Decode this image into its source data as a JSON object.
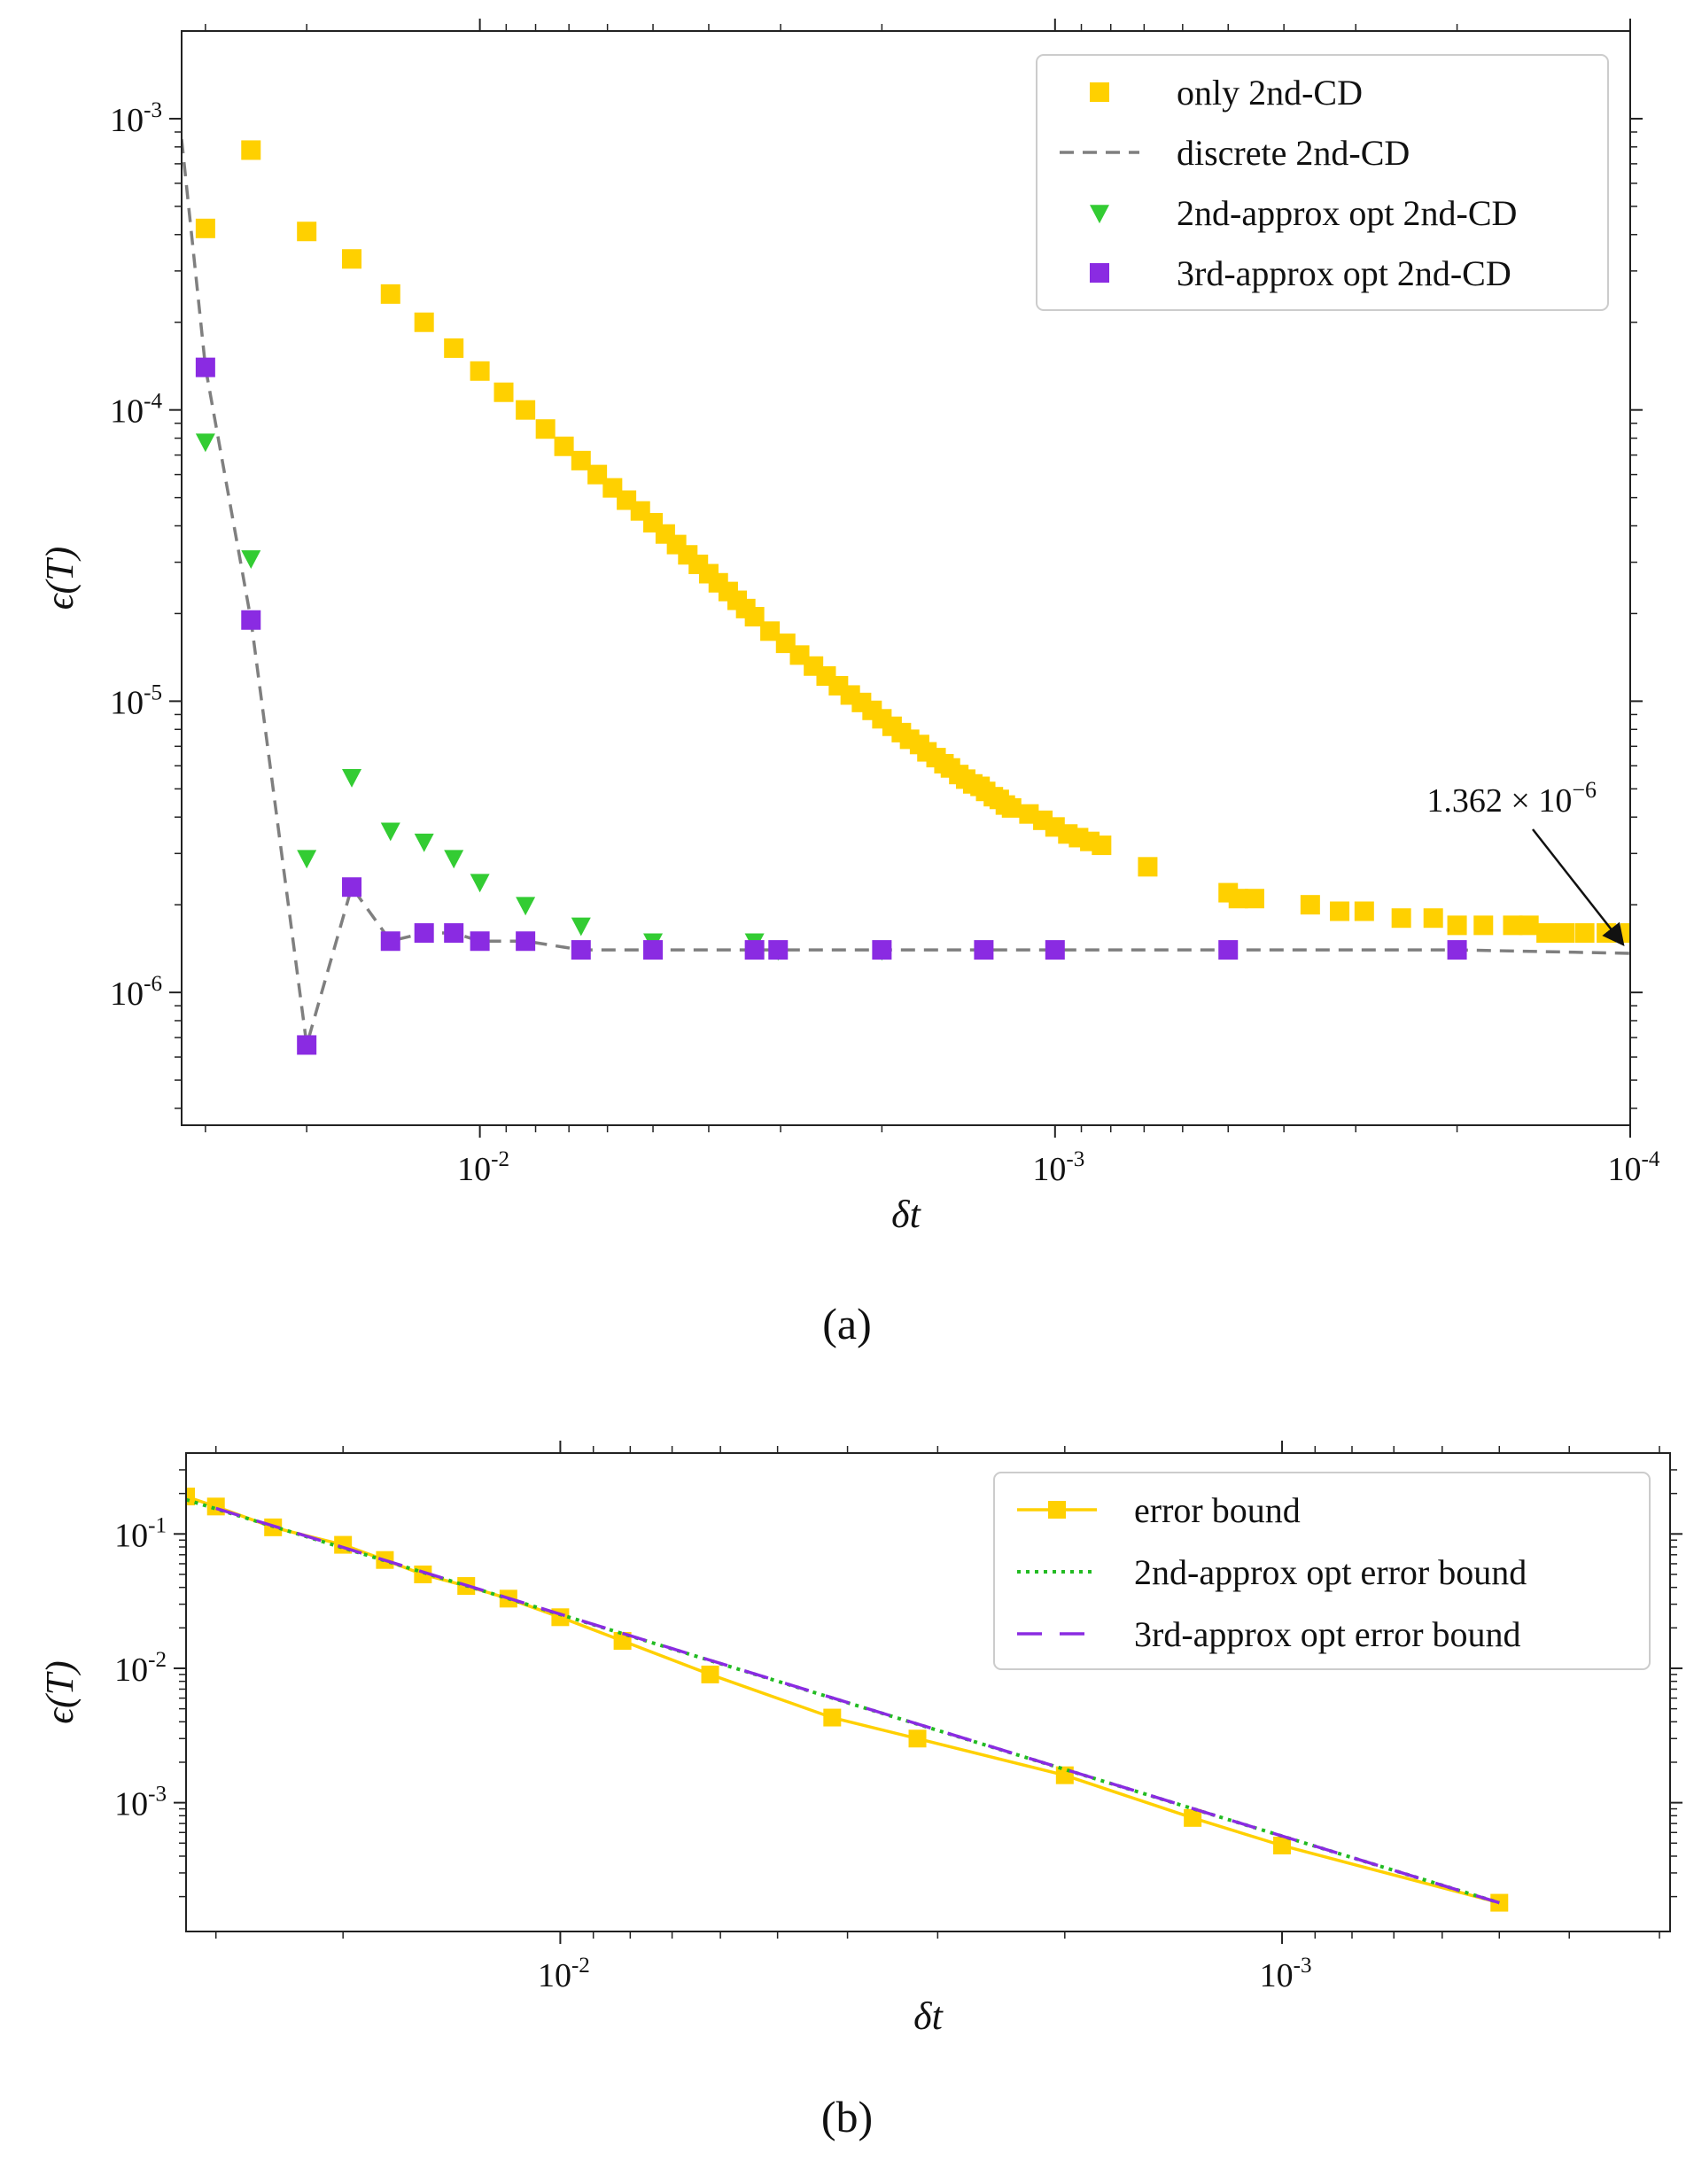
{
  "chart_data": [
    {
      "panel": "(a)",
      "type": "scatter",
      "xscale": "log",
      "yscale": "log",
      "x_reversed": true,
      "xlim": [
        0.033,
        0.0001
      ],
      "ylim": [
        3.5e-07,
        0.002
      ],
      "xlabel": "δt",
      "ylabel": "ϵ(T)",
      "xticks": [
        {
          "value": 0.01,
          "base": "10",
          "exp": "-2"
        },
        {
          "value": 0.001,
          "base": "10",
          "exp": "-3"
        },
        {
          "value": 0.0001,
          "base": "10",
          "exp": "-4"
        }
      ],
      "yticks": [
        {
          "value": 1e-06,
          "base": "10",
          "exp": "-6"
        },
        {
          "value": 1e-05,
          "base": "10",
          "exp": "-5"
        },
        {
          "value": 0.0001,
          "base": "10",
          "exp": "-4"
        },
        {
          "value": 0.001,
          "base": "10",
          "exp": "-3"
        }
      ],
      "legend_position": "top-right",
      "series": [
        {
          "name": "only 2nd-CD",
          "marker": "square",
          "color": "#FFD000",
          "line": "none",
          "points": [
            [
              0.03,
              0.00042
            ],
            [
              0.025,
              0.00078
            ],
            [
              0.02,
              0.00041
            ],
            [
              0.0167,
              0.00033
            ],
            [
              0.0143,
              0.00025
            ],
            [
              0.0125,
              0.0002
            ],
            [
              0.0111,
              0.000163
            ],
            [
              0.01,
              0.000136
            ],
            [
              0.00909,
              0.000115
            ],
            [
              0.00833,
              0.0001
            ],
            [
              0.00769,
              8.6e-05
            ],
            [
              0.00714,
              7.5e-05
            ],
            [
              0.00667,
              6.7e-05
            ],
            [
              0.00625,
              6e-05
            ],
            [
              0.00588,
              5.4e-05
            ],
            [
              0.00556,
              4.9e-05
            ],
            [
              0.00526,
              4.5e-05
            ],
            [
              0.005,
              4.1e-05
            ],
            [
              0.00476,
              3.75e-05
            ],
            [
              0.00455,
              3.45e-05
            ],
            [
              0.00435,
              3.18e-05
            ],
            [
              0.00417,
              2.95e-05
            ],
            [
              0.004,
              2.74e-05
            ],
            [
              0.00385,
              2.55e-05
            ],
            [
              0.0037,
              2.38e-05
            ],
            [
              0.00357,
              2.22e-05
            ],
            [
              0.00345,
              2.08e-05
            ],
            [
              0.00333,
              1.95e-05
            ],
            [
              0.00313,
              1.74e-05
            ],
            [
              0.00294,
              1.58e-05
            ],
            [
              0.00278,
              1.44e-05
            ],
            [
              0.00263,
              1.32e-05
            ],
            [
              0.0025,
              1.22e-05
            ],
            [
              0.00238,
              1.13e-05
            ],
            [
              0.00227,
              1.05e-05
            ],
            [
              0.00217,
              9.9e-06
            ],
            [
              0.00208,
              9.3e-06
            ],
            [
              0.002,
              8.7e-06
            ],
            [
              0.00192,
              8.2e-06
            ],
            [
              0.00185,
              7.8e-06
            ],
            [
              0.00179,
              7.4e-06
            ],
            [
              0.00172,
              7.1e-06
            ],
            [
              0.00167,
              6.7e-06
            ],
            [
              0.00161,
              6.4e-06
            ],
            [
              0.00156,
              6.1e-06
            ],
            [
              0.00152,
              5.9e-06
            ],
            [
              0.00147,
              5.6e-06
            ],
            [
              0.00143,
              5.4e-06
            ],
            [
              0.00139,
              5.2e-06
            ],
            [
              0.00135,
              5.1e-06
            ],
            [
              0.00132,
              4.9e-06
            ],
            [
              0.00128,
              4.7e-06
            ],
            [
              0.00125,
              4.6e-06
            ],
            [
              0.00122,
              4.4e-06
            ],
            [
              0.00119,
              4.3e-06
            ],
            [
              0.00111,
              4.1e-06
            ],
            [
              0.00105,
              3.9e-06
            ],
            [
              0.001,
              3.7e-06
            ],
            [
              0.00095,
              3.5e-06
            ],
            [
              0.00091,
              3.4e-06
            ],
            [
              0.00087,
              3.3e-06
            ],
            [
              0.00083,
              3.2e-06
            ],
            [
              0.00069,
              2.7e-06
            ],
            [
              0.0005,
              2.2e-06
            ],
            [
              0.00048,
              2.1e-06
            ],
            [
              0.00045,
              2.1e-06
            ],
            [
              0.00036,
              2e-06
            ],
            [
              0.00032,
              1.9e-06
            ],
            [
              0.00029,
              1.9e-06
            ],
            [
              0.00025,
              1.8e-06
            ],
            [
              0.00022,
              1.8e-06
            ],
            [
              0.0002,
              1.7e-06
            ],
            [
              0.00018,
              1.7e-06
            ],
            [
              0.00016,
              1.7e-06
            ],
            [
              0.00015,
              1.7e-06
            ],
            [
              0.00014,
              1.6e-06
            ],
            [
              0.00013,
              1.6e-06
            ],
            [
              0.00012,
              1.6e-06
            ],
            [
              0.00011,
              1.6e-06
            ],
            [
              0.0001,
              1.6e-06
            ]
          ]
        },
        {
          "name": "discrete 2nd-CD",
          "marker": "none",
          "color": "#7f7f7f",
          "line": "dashed",
          "points": [
            [
              0.033,
              0.00085
            ],
            [
              0.03,
              0.00014
            ],
            [
              0.025,
              1.9e-05
            ],
            [
              0.02,
              6.6e-07
            ],
            [
              0.0167,
              2.3e-06
            ],
            [
              0.0143,
              1.5e-06
            ],
            [
              0.0125,
              1.6e-06
            ],
            [
              0.0111,
              1.6e-06
            ],
            [
              0.01,
              1.5e-06
            ],
            [
              0.00833,
              1.5e-06
            ],
            [
              0.00667,
              1.4e-06
            ],
            [
              0.005,
              1.4e-06
            ],
            [
              0.00333,
              1.4e-06
            ],
            [
              0.00303,
              1.4e-06
            ],
            [
              0.002,
              1.4e-06
            ],
            [
              0.00133,
              1.4e-06
            ],
            [
              0.001,
              1.4e-06
            ],
            [
              0.0005,
              1.4e-06
            ],
            [
              0.0002,
              1.4e-06
            ],
            [
              0.0001,
              1.362e-06
            ]
          ]
        },
        {
          "name": "2nd-approx opt 2nd-CD",
          "marker": "triangle-down",
          "color": "#33CC33",
          "line": "none",
          "points": [
            [
              0.03,
              7.8e-05
            ],
            [
              0.025,
              3.1e-05
            ],
            [
              0.02,
              2.9e-06
            ],
            [
              0.0167,
              5.5e-06
            ],
            [
              0.0143,
              3.6e-06
            ],
            [
              0.0125,
              3.3e-06
            ],
            [
              0.0111,
              2.9e-06
            ],
            [
              0.01,
              2.4e-06
            ],
            [
              0.00833,
              2e-06
            ],
            [
              0.00667,
              1.7e-06
            ],
            [
              0.005,
              1.5e-06
            ],
            [
              0.00333,
              1.5e-06
            ],
            [
              0.00303,
              1.4e-06
            ],
            [
              0.002,
              1.4e-06
            ]
          ]
        },
        {
          "name": "3rd-approx opt 2nd-CD",
          "marker": "square",
          "color": "#8A2BE2",
          "line": "none",
          "points": [
            [
              0.03,
              0.00014
            ],
            [
              0.025,
              1.9e-05
            ],
            [
              0.02,
              6.6e-07
            ],
            [
              0.0167,
              2.3e-06
            ],
            [
              0.0143,
              1.5e-06
            ],
            [
              0.0125,
              1.6e-06
            ],
            [
              0.0111,
              1.6e-06
            ],
            [
              0.01,
              1.5e-06
            ],
            [
              0.00833,
              1.5e-06
            ],
            [
              0.00667,
              1.4e-06
            ],
            [
              0.005,
              1.4e-06
            ],
            [
              0.00333,
              1.4e-06
            ],
            [
              0.00303,
              1.4e-06
            ],
            [
              0.002,
              1.4e-06
            ],
            [
              0.00133,
              1.4e-06
            ],
            [
              0.001,
              1.4e-06
            ],
            [
              0.0005,
              1.4e-06
            ],
            [
              0.0002,
              1.4e-06
            ]
          ]
        }
      ],
      "annotations": [
        {
          "text": "1.362 × 10",
          "exp": "−6",
          "point_x": 0.0001,
          "point_y": 1.362e-06
        }
      ]
    },
    {
      "panel": "(b)",
      "type": "line",
      "xscale": "log",
      "yscale": "log",
      "x_reversed": true,
      "xlim": [
        0.033,
        0.00029
      ],
      "ylim": [
        0.00011,
        0.4
      ],
      "xlabel": "δt",
      "ylabel": "ϵ(T)",
      "xticks": [
        {
          "value": 0.01,
          "base": "10",
          "exp": "-2"
        },
        {
          "value": 0.001,
          "base": "10",
          "exp": "-3"
        }
      ],
      "yticks": [
        {
          "value": 0.001,
          "base": "10",
          "exp": "-3"
        },
        {
          "value": 0.01,
          "base": "10",
          "exp": "-2"
        },
        {
          "value": 0.1,
          "base": "10",
          "exp": "-1"
        }
      ],
      "legend_position": "top-right",
      "series": [
        {
          "name": "error bound",
          "marker": "square",
          "color": "#FFD000",
          "line": "solid",
          "points": [
            [
              0.033,
              0.19
            ],
            [
              0.03,
              0.16
            ],
            [
              0.025,
              0.112
            ],
            [
              0.02,
              0.083
            ],
            [
              0.0175,
              0.064
            ],
            [
              0.0155,
              0.05
            ],
            [
              0.0135,
              0.041
            ],
            [
              0.0118,
              0.033
            ],
            [
              0.01,
              0.024
            ],
            [
              0.0082,
              0.016
            ],
            [
              0.0062,
              0.009
            ],
            [
              0.0042,
              0.0043
            ],
            [
              0.0032,
              0.003
            ],
            [
              0.002,
              0.0016
            ],
            [
              0.00133,
              0.00077
            ],
            [
              0.001,
              0.00048
            ],
            [
              0.0005,
              0.00018
            ]
          ]
        },
        {
          "name": "2nd-approx opt error bound",
          "marker": "none",
          "color": "#22BB22",
          "line": "dotted",
          "points": [
            [
              0.033,
              0.18
            ],
            [
              0.0005,
              0.00018
            ]
          ]
        },
        {
          "name": "3rd-approx opt error bound",
          "marker": "none",
          "color": "#8A2BE2",
          "line": "dashed",
          "points": [
            [
              0.03,
              0.155
            ],
            [
              0.0005,
              0.00018
            ]
          ]
        }
      ]
    }
  ],
  "captions": {
    "a": "(a)",
    "b": "(b)"
  }
}
